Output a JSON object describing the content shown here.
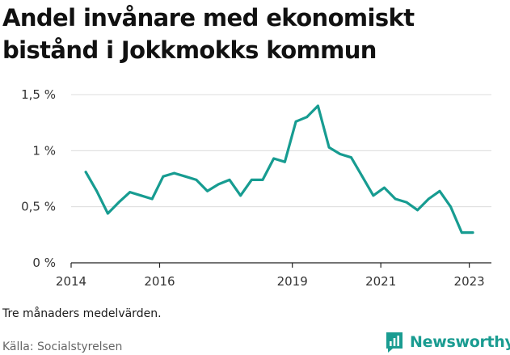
{
  "title": "Andel invånare med ekonomiskt bistånd i Jokkmokks kommun",
  "note": "Tre månaders medelvärden.",
  "source": "Källa: Socialstyrelsen",
  "brand": {
    "name": "Newsworthy",
    "logo_icon": "newsworthy-logo-icon"
  },
  "colors": {
    "line": "#179c91",
    "grid": "#dcdcdc",
    "axis": "#222222",
    "brand": "#1a9c91"
  },
  "chart_data": {
    "type": "line",
    "title": "Andel invånare med ekonomiskt bistånd i Jokkmokks kommun",
    "xlabel": "",
    "ylabel": "",
    "xlim": [
      2014,
      2023.5
    ],
    "ylim": [
      0,
      1.5
    ],
    "y_ticks": [
      0,
      0.5,
      1,
      1.5
    ],
    "y_tick_labels": [
      "0 %",
      "0,5 %",
      "1 %",
      "1,5 %"
    ],
    "x_ticks": [
      2014,
      2016,
      2019,
      2021,
      2023
    ],
    "x_tick_labels": [
      "2014",
      "2016",
      "2019",
      "2021",
      "2023"
    ],
    "grid": true,
    "legend": "none",
    "series": [
      {
        "x": [
          2014.33,
          2014.58,
          2014.83,
          2015.08,
          2015.33,
          2015.58,
          2015.83,
          2016.08,
          2016.33,
          2016.58,
          2016.83,
          2017.08,
          2017.33,
          2017.58,
          2017.83,
          2018.08,
          2018.33,
          2018.58,
          2018.83,
          2019.08,
          2019.33,
          2019.58,
          2019.83,
          2020.08,
          2020.33,
          2020.58,
          2020.83,
          2021.08,
          2021.33,
          2021.58,
          2021.83,
          2022.08,
          2022.33,
          2022.58,
          2022.83,
          2023.08
        ],
        "values": [
          0.81,
          0.64,
          0.44,
          0.54,
          0.63,
          0.6,
          0.57,
          0.77,
          0.8,
          0.77,
          0.74,
          0.64,
          0.7,
          0.74,
          0.6,
          0.74,
          0.74,
          0.93,
          0.9,
          1.26,
          1.3,
          1.4,
          1.03,
          0.97,
          0.94,
          0.77,
          0.6,
          0.67,
          0.57,
          0.54,
          0.47,
          0.57,
          0.64,
          0.5,
          0.27,
          0.27
        ]
      }
    ]
  }
}
